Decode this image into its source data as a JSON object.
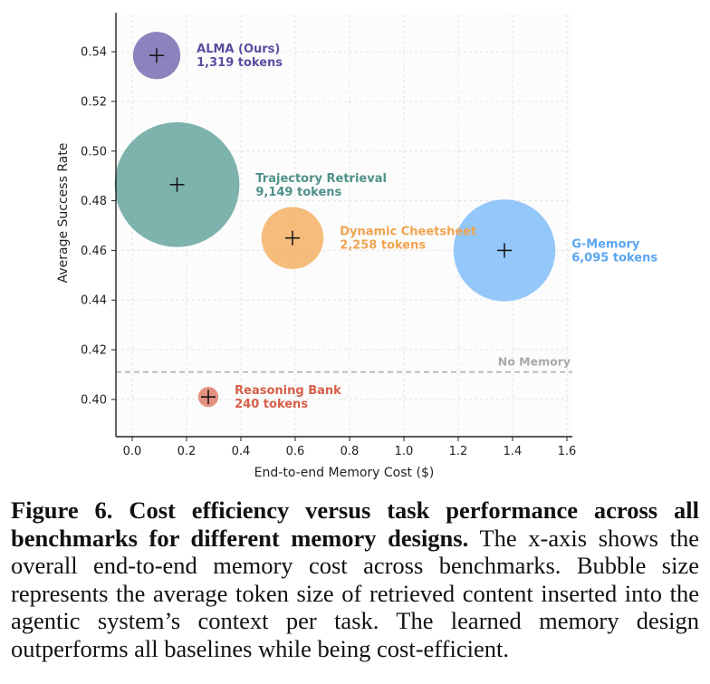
{
  "chart_data": {
    "type": "scatter",
    "subtype": "bubble",
    "xlabel": "End-to-end Memory Cost ($)",
    "ylabel": "Average Success Rate",
    "xlim": [
      -0.06,
      1.62
    ],
    "ylim": [
      0.385,
      0.555
    ],
    "xticks": [
      0.0,
      0.2,
      0.4,
      0.6,
      0.8,
      1.0,
      1.2,
      1.4,
      1.6
    ],
    "xtick_labels": [
      "0.0",
      "0.2",
      "0.4",
      "0.6",
      "0.8",
      "1.0",
      "1.2",
      "1.4",
      "1.6"
    ],
    "yticks": [
      0.4,
      0.42,
      0.44,
      0.46,
      0.48,
      0.5,
      0.52,
      0.54
    ],
    "ytick_labels": [
      "0.40",
      "0.42",
      "0.44",
      "0.46",
      "0.48",
      "0.50",
      "0.52",
      "0.54"
    ],
    "grid": true,
    "points": [
      {
        "name": "ALMA (Ours)",
        "tokens_label": "1,319 tokens",
        "tokens": 1319,
        "x": 0.09,
        "y": 0.5385,
        "color": "#7b72b5",
        "text_color": "#5a4ea0"
      },
      {
        "name": "Trajectory Retrieval",
        "tokens_label": "9,149 tokens",
        "tokens": 9149,
        "x": 0.165,
        "y": 0.4865,
        "color": "#6ba8a0",
        "text_color": "#4f9189"
      },
      {
        "name": "Dynamic Cheetsheet",
        "tokens_label": "2,258 tokens",
        "tokens": 2258,
        "x": 0.59,
        "y": 0.465,
        "color": "#f5b36a",
        "text_color": "#f0a450"
      },
      {
        "name": "G-Memory",
        "tokens_label": "6,095 tokens",
        "tokens": 6095,
        "x": 1.37,
        "y": 0.46,
        "color": "#85bff9",
        "text_color": "#5aa6f0"
      },
      {
        "name": "Reasoning Bank",
        "tokens_label": "240 tokens",
        "tokens": 240,
        "x": 0.28,
        "y": 0.401,
        "color": "#e0826f",
        "text_color": "#d65f48"
      }
    ],
    "reference_line": {
      "label": "No Memory",
      "y": 0.411,
      "color": "#b0b0b0"
    }
  },
  "caption": {
    "figure_label": "Figure 6.",
    "title": "Cost efficiency versus task performance across all benchmarks for different memory designs.",
    "body": "The x-axis shows the overall end-to-end memory cost across benchmarks. Bubble size represents the average token size of retrieved content inserted into the agentic system’s context per task. The learned memory design outperforms all baselines while being cost-efficient."
  }
}
